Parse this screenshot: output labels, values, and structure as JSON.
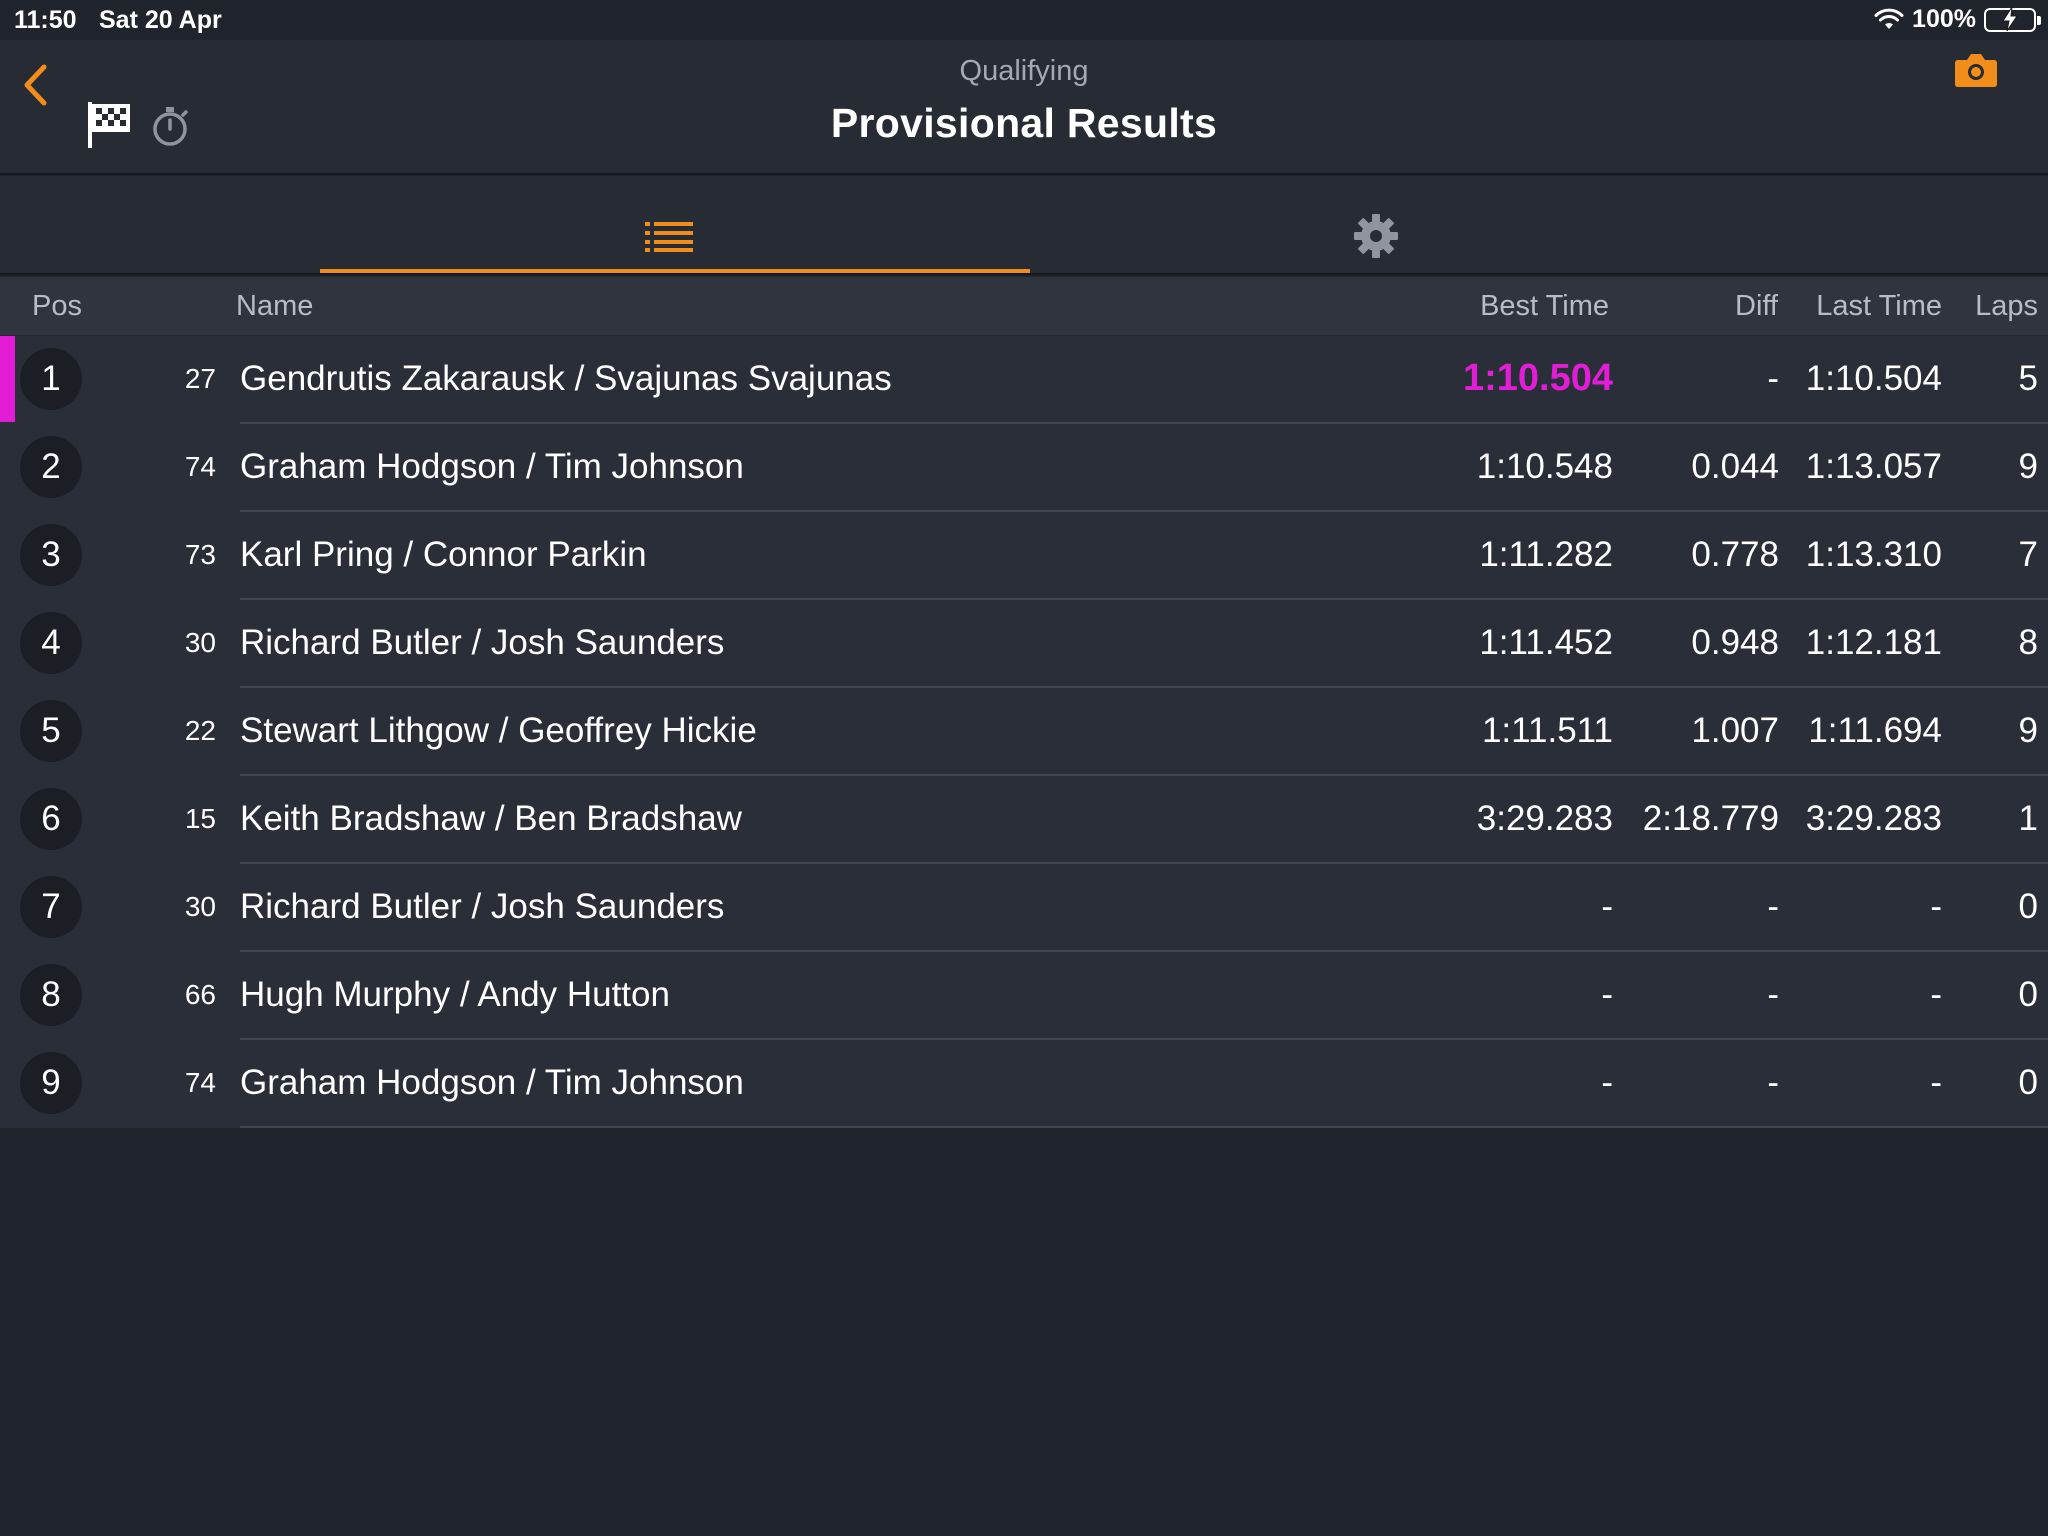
{
  "status_bar": {
    "time": "11:50",
    "date": "Sat 20 Apr",
    "battery": "100%"
  },
  "header": {
    "subtitle": "Qualifying",
    "title": "Provisional Results"
  },
  "icons": {
    "back": "chevron-left-icon",
    "flag": "checkered-flag-icon",
    "stopwatch": "stopwatch-icon",
    "camera": "camera-icon",
    "list": "list-icon",
    "settings": "gear-icon",
    "wifi": "wifi-icon",
    "battery": "battery-charging-icon"
  },
  "colors": {
    "accent": "#f28c1a",
    "fastest": "#e21dd6",
    "background": "#20242d",
    "row": "#2a2e38"
  },
  "columns": {
    "pos": "Pos",
    "name": "Name",
    "best_time": "Best Time",
    "diff": "Diff",
    "last_time": "Last Time",
    "laps": "Laps"
  },
  "results": [
    {
      "pos": "1",
      "car": "27",
      "name": "Gendrutis Zakarausk / Svajunas Svajunas",
      "best": "1:10.504",
      "diff": "-",
      "last": "1:10.504",
      "laps": "5",
      "fastest": true
    },
    {
      "pos": "2",
      "car": "74",
      "name": "Graham Hodgson / Tim Johnson",
      "best": "1:10.548",
      "diff": "0.044",
      "last": "1:13.057",
      "laps": "9"
    },
    {
      "pos": "3",
      "car": "73",
      "name": "Karl Pring / Connor Parkin",
      "best": "1:11.282",
      "diff": "0.778",
      "last": "1:13.310",
      "laps": "7"
    },
    {
      "pos": "4",
      "car": "30",
      "name": "Richard Butler / Josh Saunders",
      "best": "1:11.452",
      "diff": "0.948",
      "last": "1:12.181",
      "laps": "8"
    },
    {
      "pos": "5",
      "car": "22",
      "name": "Stewart Lithgow / Geoffrey Hickie",
      "best": "1:11.511",
      "diff": "1.007",
      "last": "1:11.694",
      "laps": "9"
    },
    {
      "pos": "6",
      "car": "15",
      "name": "Keith Bradshaw / Ben Bradshaw",
      "best": "3:29.283",
      "diff": "2:18.779",
      "last": "3:29.283",
      "laps": "1"
    },
    {
      "pos": "7",
      "car": "30",
      "name": "Richard Butler / Josh Saunders",
      "best": "-",
      "diff": "-",
      "last": "-",
      "laps": "0"
    },
    {
      "pos": "8",
      "car": "66",
      "name": "Hugh Murphy / Andy Hutton",
      "best": "-",
      "diff": "-",
      "last": "-",
      "laps": "0"
    },
    {
      "pos": "9",
      "car": "74",
      "name": "Graham Hodgson / Tim Johnson",
      "best": "-",
      "diff": "-",
      "last": "-",
      "laps": "0"
    }
  ]
}
